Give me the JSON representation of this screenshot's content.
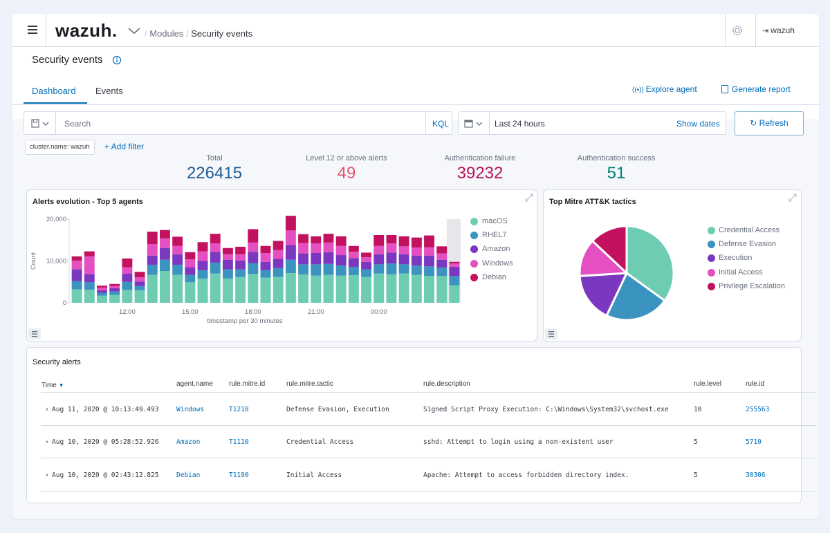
{
  "header": {
    "logo": "wazuh.",
    "breadcrumb": [
      "Modules",
      "Security events"
    ],
    "user": "wazuh"
  },
  "page": {
    "title": "Security events",
    "tabs": [
      "Dashboard",
      "Events"
    ],
    "active_tab": "Dashboard",
    "explore_agent": "Explore agent",
    "generate_report": "Generate report"
  },
  "search": {
    "placeholder": "Search",
    "kql": "KQL",
    "time_range": "Last 24 hours",
    "show_dates": "Show dates",
    "refresh": "Refresh"
  },
  "filters": {
    "chip": "cluster.name: wazuh",
    "add_filter": "+ Add filter"
  },
  "stats": [
    {
      "label": "Total",
      "value": "226415",
      "color": "#1e5c98"
    },
    {
      "label": "Level 12 or above alerts",
      "value": "49",
      "color": "#e0556f"
    },
    {
      "label": "Authentication failure",
      "value": "39232",
      "color": "#b8135e"
    },
    {
      "label": "Authentication success",
      "value": "51",
      "color": "#017d73"
    }
  ],
  "colors": {
    "macOS": "#6dccb1",
    "RHEL7": "#3b93bf",
    "Amazon": "#7c37c0",
    "Windows": "#e450c2",
    "Debian": "#c2115e",
    "accent": "#006bb8"
  },
  "chart_data": [
    {
      "type": "bar",
      "stacked": true,
      "title": "Alerts evolution - Top 5 agents",
      "xlabel": "timestamp per 30 minutes",
      "ylabel": "Count",
      "ylim": [
        0,
        20000
      ],
      "yticks": [
        "0",
        "10,000",
        "20,000"
      ],
      "xtick_labels": [
        "12:00",
        "15:00",
        "18:00",
        "21:00",
        "00:00"
      ],
      "xtick_indices": [
        4.5,
        9.5,
        14.5,
        19.5,
        24.5
      ],
      "series": [
        {
          "name": "macOS",
          "values": [
            3200,
            3100,
            1700,
            1900,
            3100,
            3000,
            6700,
            7600,
            6700,
            4900,
            5800,
            7000,
            5800,
            6200,
            6900,
            6000,
            6200,
            7100,
            6800,
            6500,
            6700,
            6500,
            6600,
            6200,
            7000,
            6800,
            7000,
            6700,
            6400,
            6400,
            4200
          ]
        },
        {
          "name": "RHEL7",
          "values": [
            2000,
            1800,
            700,
            800,
            1900,
            1000,
            2400,
            2700,
            2400,
            1800,
            2000,
            2600,
            2200,
            1800,
            2600,
            1800,
            2100,
            3200,
            2400,
            2700,
            2600,
            2400,
            2000,
            1800,
            2200,
            2600,
            2200,
            2200,
            2300,
            2000,
            2200
          ]
        },
        {
          "name": "Amazon",
          "values": [
            2800,
            2000,
            600,
            800,
            2000,
            1100,
            2200,
            2800,
            2500,
            1800,
            2200,
            2600,
            2300,
            2100,
            2700,
            2000,
            2200,
            3500,
            2600,
            2700,
            2800,
            2500,
            2100,
            1800,
            2400,
            2600,
            2400,
            2400,
            2600,
            1900,
            2200
          ]
        },
        {
          "name": "Windows",
          "values": [
            2100,
            4200,
            600,
            500,
            1500,
            1000,
            2700,
            2300,
            2000,
            1900,
            2300,
            2000,
            1300,
            1500,
            2200,
            2100,
            2100,
            3500,
            2500,
            2300,
            2300,
            2200,
            1500,
            1100,
            2000,
            2200,
            1900,
            1900,
            2000,
            1500,
            800
          ]
        },
        {
          "name": "Debian",
          "values": [
            1000,
            1200,
            500,
            500,
            2100,
            1300,
            3000,
            2000,
            2200,
            1700,
            2200,
            2300,
            1500,
            1800,
            3200,
            1700,
            2200,
            3500,
            2100,
            1700,
            2100,
            2300,
            1400,
            1100,
            2600,
            2000,
            2400,
            2400,
            2800,
            1700,
            400
          ]
        }
      ]
    },
    {
      "type": "pie",
      "title": "Top Mitre ATT&K tactics",
      "categories": [
        "Credential Access",
        "Defense Evasion",
        "Execution",
        "Initial Access",
        "Privilege Escalation"
      ],
      "values": [
        35,
        22,
        17,
        13,
        13
      ]
    }
  ],
  "alerts": {
    "title": "Security alerts",
    "columns": [
      "Time",
      "agent.name",
      "rule.mitre.id",
      "rule.mitre.tactic",
      "rule.description",
      "rule.level",
      "rule.id"
    ],
    "rows": [
      [
        "Aug 11, 2020 @ 10:13:49.493",
        "Windows",
        "T1218",
        "Defense Evasion, Execution",
        "Signed Script Proxy Execution: C:\\Windows\\System32\\svchost.exe",
        "10",
        "255563"
      ],
      [
        "Aug 10, 2020 @ 05:28:52.926",
        "Amazon",
        "T1110",
        "Credential Access",
        "sshd: Attempt to login using a non-existent user",
        "5",
        "5710"
      ],
      [
        "Aug 10, 2020 @ 02:43:12.825",
        "Debian",
        "T1190",
        "Initial Access",
        "Apache: Attempt to access forbidden directory index.",
        "5",
        "30306"
      ]
    ]
  }
}
